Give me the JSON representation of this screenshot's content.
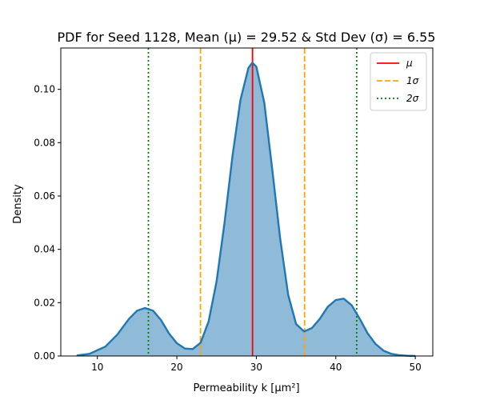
{
  "chart_data": {
    "type": "area",
    "title": "PDF for Seed 1128, Mean (μ) = 29.52 & Std Dev (σ) = 6.55",
    "xlabel": "Permeability k [μm²]",
    "ylabel": "Density",
    "xlim": [
      5.4,
      52.2
    ],
    "ylim": [
      0.0,
      0.1155
    ],
    "x_ticks": [
      10,
      20,
      30,
      40,
      50
    ],
    "y_ticks": [
      0.0,
      0.02,
      0.04,
      0.06,
      0.08,
      0.1
    ],
    "x": [
      7.4,
      9,
      11,
      12.5,
      14,
      15,
      16,
      17,
      18,
      19,
      20,
      21,
      22,
      23,
      24,
      25,
      26,
      27,
      28,
      29,
      29.5,
      30,
      31,
      32,
      33,
      34,
      35,
      36,
      37,
      38,
      39,
      40,
      41,
      42,
      43,
      44,
      45,
      46,
      47,
      48,
      49,
      50
    ],
    "y": [
      0.0002,
      0.0008,
      0.0035,
      0.008,
      0.014,
      0.017,
      0.018,
      0.017,
      0.0135,
      0.0085,
      0.0048,
      0.0028,
      0.0026,
      0.005,
      0.013,
      0.028,
      0.05,
      0.075,
      0.096,
      0.108,
      0.11,
      0.1085,
      0.095,
      0.07,
      0.044,
      0.023,
      0.012,
      0.0092,
      0.0105,
      0.014,
      0.0185,
      0.021,
      0.0215,
      0.019,
      0.014,
      0.0085,
      0.0045,
      0.002,
      0.0008,
      0.0003,
      0.0001,
      3e-05
    ],
    "series_color": "#1f77b4",
    "fill_color": "#1f77b4",
    "fill_opacity": 0.5,
    "vlines": [
      {
        "x": 29.52,
        "style": "solid",
        "color": "#ff0000",
        "legend": "μ"
      },
      {
        "x": 22.97,
        "style": "dashed",
        "color": "#ffa500",
        "legend": "1σ"
      },
      {
        "x": 36.07,
        "style": "dashed",
        "color": "#ffa500",
        "legend": null
      },
      {
        "x": 16.42,
        "style": "dotted",
        "color": "#008000",
        "legend": "2σ"
      },
      {
        "x": 42.62,
        "style": "dotted",
        "color": "#008000",
        "legend": null
      }
    ],
    "legend": {
      "placement": "top-right",
      "entries": [
        {
          "label": "μ",
          "color": "#ff0000",
          "style": "solid"
        },
        {
          "label": "1σ",
          "color": "#ffa500",
          "style": "dashed"
        },
        {
          "label": "2σ",
          "color": "#008000",
          "style": "dotted"
        }
      ]
    },
    "grid": false
  }
}
